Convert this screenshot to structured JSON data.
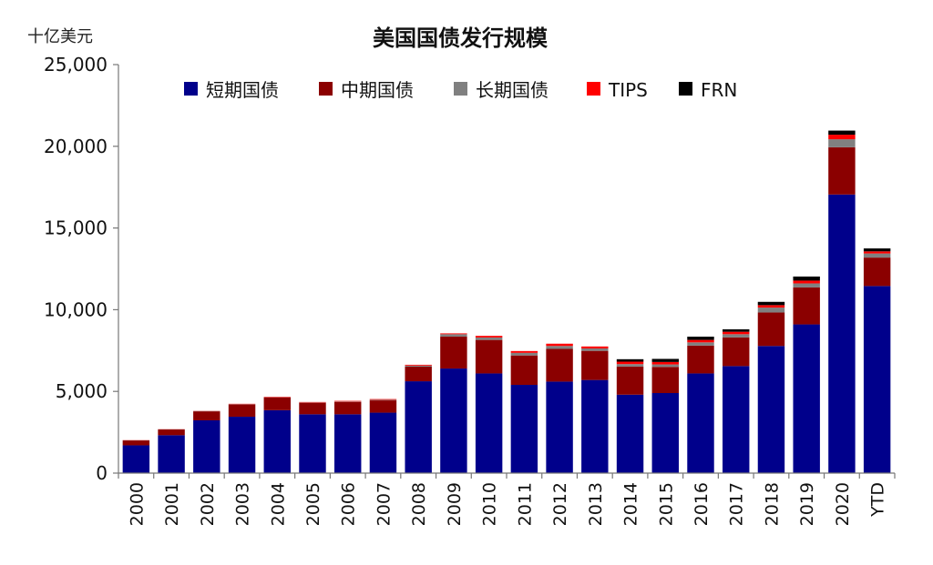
{
  "chart_data": {
    "type": "bar",
    "stacked": true,
    "title": "美国国债发行规模",
    "unit_label": "十亿美元",
    "xlabel": "",
    "ylabel": "",
    "ylim": [
      0,
      25000
    ],
    "yticks": [
      0,
      5000,
      10000,
      15000,
      20000,
      25000
    ],
    "ytick_labels": [
      "0",
      "5,000",
      "10,000",
      "15,000",
      "20,000",
      "25,000"
    ],
    "grid": false,
    "legend_position": "top",
    "categories": [
      "2000",
      "2001",
      "2002",
      "2003",
      "2004",
      "2005",
      "2006",
      "2007",
      "2008",
      "2009",
      "2010",
      "2011",
      "2012",
      "2013",
      "2014",
      "2015",
      "2016",
      "2017",
      "2018",
      "2019",
      "2020",
      "YTD"
    ],
    "series": [
      {
        "name": "短期国债",
        "color": "#00008b",
        "values": [
          1700,
          2320,
          3230,
          3450,
          3850,
          3600,
          3600,
          3700,
          5620,
          6400,
          6100,
          5400,
          5600,
          5700,
          4800,
          4900,
          6100,
          6550,
          7780,
          9100,
          17050,
          11450
        ]
      },
      {
        "name": "中期国债",
        "color": "#8b0000",
        "values": [
          300,
          350,
          550,
          750,
          770,
          700,
          750,
          750,
          900,
          1950,
          2050,
          1800,
          2000,
          1780,
          1720,
          1600,
          1700,
          1750,
          2050,
          2260,
          2890,
          1740
        ]
      },
      {
        "name": "长期国债",
        "color": "#808080",
        "values": [
          10,
          10,
          20,
          20,
          20,
          20,
          30,
          40,
          60,
          150,
          150,
          160,
          180,
          150,
          150,
          150,
          200,
          200,
          300,
          250,
          490,
          250
        ]
      },
      {
        "name": "TIPS",
        "color": "#ff0000",
        "values": [
          10,
          10,
          10,
          20,
          30,
          30,
          40,
          40,
          50,
          50,
          100,
          110,
          140,
          120,
          150,
          150,
          150,
          150,
          150,
          170,
          280,
          130
        ]
      },
      {
        "name": "FRN",
        "color": "#000000",
        "values": [
          0,
          0,
          0,
          0,
          0,
          0,
          0,
          0,
          0,
          0,
          0,
          0,
          0,
          0,
          150,
          190,
          200,
          150,
          200,
          250,
          250,
          180
        ]
      }
    ]
  }
}
